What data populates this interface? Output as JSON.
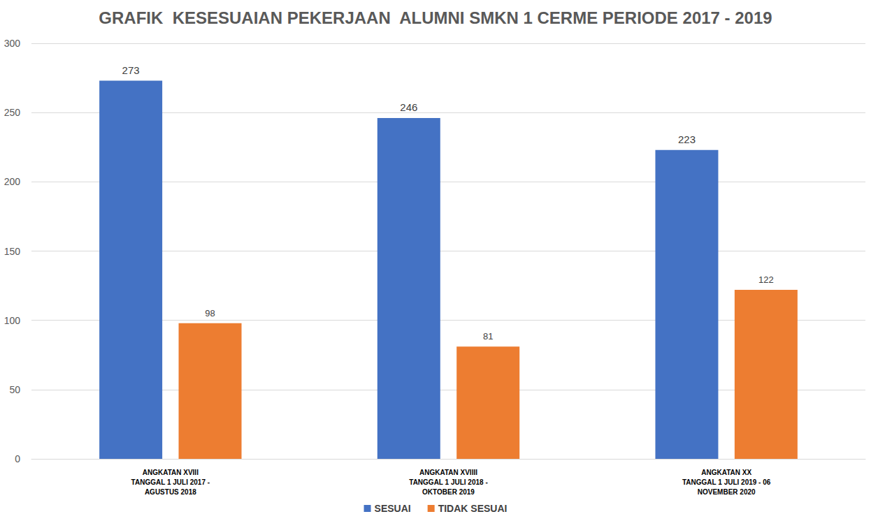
{
  "chart_data": {
    "type": "bar",
    "title": "GRAFIK  KESESUAIAN PEKERJAAN  ALUMNI SMKN 1 CERME PERIODE 2017 - 2019",
    "categories": [
      "ANGKATAN XVIII\nTANGGAL 1 JULI 2017 -\nAGUSTUS 2018",
      "ANGKATAN XVIIII\nTANGGAL 1 JULI 2018 -\nOKTOBER 2019",
      "ANGKATAN XX\nTANGGAL 1 JULI 2019 - 06\nNOVEMBER 2020"
    ],
    "series": [
      {
        "name": "SESUAI",
        "color": "#4472c4",
        "values": [
          273,
          246,
          223
        ]
      },
      {
        "name": "TIDAK SESUAI",
        "color": "#ed7d31",
        "values": [
          98,
          81,
          122
        ]
      }
    ],
    "ylim": [
      0,
      300
    ],
    "yticks": [
      0,
      50,
      100,
      150,
      200,
      250,
      300
    ],
    "grid": true,
    "legend": "bottom",
    "data_labels": true
  }
}
